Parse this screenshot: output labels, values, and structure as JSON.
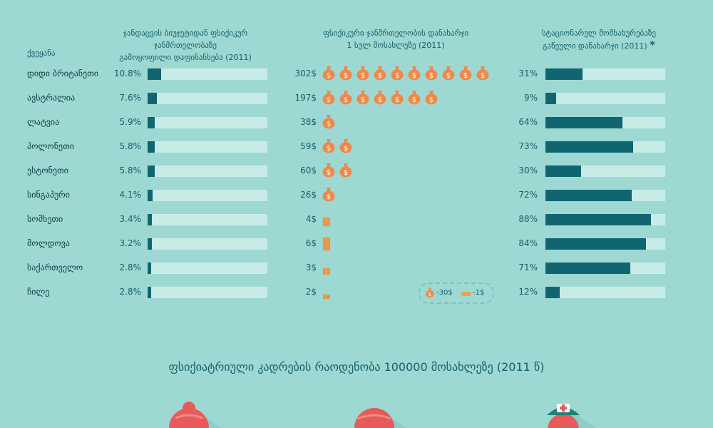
{
  "headers": {
    "country": "ქვეყანა",
    "col1_line1": "ჯანდაცვის ბიუჯეტიდან ფსიქიკურ ჯანმრთელობაზე",
    "col1_line2": "გამოყოფილი დაფინანსება (2011)",
    "col2_line1": "ფსიქიკური ჯანმრთელობის დანახარჯი",
    "col2_line2": "1 სულ მოსახლეზე (2011)",
    "col3_line1": "სტაციონარულ მომსახურებაზე",
    "col3_line2": "გაწეული დანახარჯი (2011)",
    "col3_mark": "*"
  },
  "legend": {
    "bag_label": "-30$",
    "coin_label": "-1$"
  },
  "colors": {
    "background": "#9ed8d2",
    "bar": "#116570",
    "track": "#c7ece8",
    "money": "#f0884a",
    "text": "#16616b"
  },
  "chart_data": {
    "type": "table",
    "columns": [
      "ქვეყანა",
      "ფსიქიკურ ჯანმრთელობაზე გამოყოფილი დაფინანსება (2011)",
      "დანახარჯი 1 სულ მოსახლეზე (2011)",
      "სტაციონარულ მომსახურებაზე დანახარჯი (2011)"
    ],
    "rows": [
      {
        "country": "დიდი ბრიტანეთი",
        "funding_label": "10.8%",
        "funding": 10.8,
        "cost_label": "302$",
        "cost": 302,
        "bags": 10,
        "coins": 0,
        "inpatient_label": "31%",
        "inpatient": 31
      },
      {
        "country": "ავსტრალია",
        "funding_label": "7.6%",
        "funding": 7.6,
        "cost_label": "197$",
        "cost": 197,
        "bags": 7,
        "coins": 0,
        "inpatient_label": "9%",
        "inpatient": 9
      },
      {
        "country": "ლატვია",
        "funding_label": "5.9%",
        "funding": 5.9,
        "cost_label": "38$",
        "cost": 38,
        "bags": 1,
        "coins": 0,
        "inpatient_label": "64%",
        "inpatient": 64
      },
      {
        "country": "პოლონეთი",
        "funding_label": "5.8%",
        "funding": 5.8,
        "cost_label": "59$",
        "cost": 59,
        "bags": 2,
        "coins": 0,
        "inpatient_label": "73%",
        "inpatient": 73
      },
      {
        "country": "ესტონეთი",
        "funding_label": "5.8%",
        "funding": 5.8,
        "cost_label": "60$",
        "cost": 60,
        "bags": 2,
        "coins": 0,
        "inpatient_label": "30%",
        "inpatient": 30
      },
      {
        "country": "სინგაპური",
        "funding_label": "4.1%",
        "funding": 4.1,
        "cost_label": "26$",
        "cost": 26,
        "bags": 1,
        "coins": 0,
        "inpatient_label": "72%",
        "inpatient": 72
      },
      {
        "country": "სომხეთი",
        "funding_label": "3.4%",
        "funding": 3.4,
        "cost_label": "4$",
        "cost": 4,
        "bags": 0,
        "coins": 4,
        "inpatient_label": "88%",
        "inpatient": 88
      },
      {
        "country": "მოლდოვა",
        "funding_label": "3.2%",
        "funding": 3.2,
        "cost_label": "6$",
        "cost": 6,
        "bags": 0,
        "coins": 6,
        "inpatient_label": "84%",
        "inpatient": 84
      },
      {
        "country": "საქართველო",
        "funding_label": "2.8%",
        "funding": 2.8,
        "cost_label": "3$",
        "cost": 3,
        "bags": 0,
        "coins": 3,
        "inpatient_label": "71%",
        "inpatient": 71
      },
      {
        "country": "ჩილე",
        "funding_label": "2.8%",
        "funding": 2.8,
        "cost_label": "2$",
        "cost": 2,
        "bags": 0,
        "coins": 2,
        "inpatient_label": "12%",
        "inpatient": 12
      }
    ],
    "funding_max": 100,
    "inpatient_max": 100
  },
  "section2_title": "ფსიქიატრიული კადრების რაოდენობა 100000 მოსახლეზე (2011 წ)",
  "people": [
    {
      "role": "doctor-woman"
    },
    {
      "role": "psychologist"
    },
    {
      "role": "nurse"
    }
  ]
}
